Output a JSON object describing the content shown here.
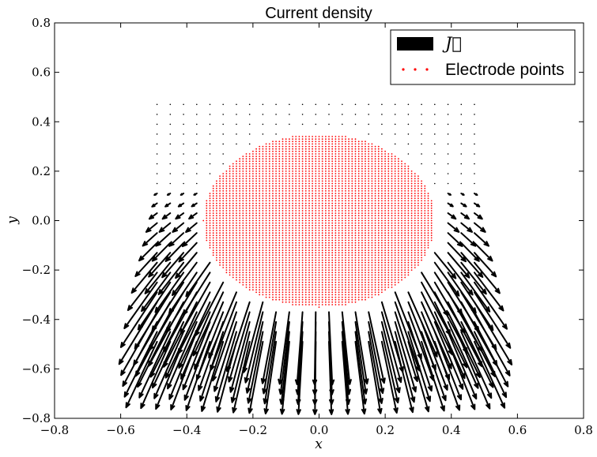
{
  "chart_data": {
    "type": "vector-field",
    "title": "Current density",
    "xlabel": "x",
    "ylabel": "y",
    "xlim": [
      -0.8,
      0.8
    ],
    "ylim": [
      -0.8,
      0.8
    ],
    "x_ticks": [
      -0.8,
      -0.6,
      -0.4,
      -0.2,
      0.0,
      0.2,
      0.4,
      0.6,
      0.8
    ],
    "y_ticks": [
      -0.8,
      -0.6,
      -0.4,
      -0.2,
      0.0,
      0.2,
      0.4,
      0.6,
      0.8
    ],
    "x_tick_labels": [
      "−0.8",
      "−0.6",
      "−0.4",
      "−0.2",
      "0.0",
      "0.2",
      "0.4",
      "0.6",
      "0.8"
    ],
    "y_tick_labels": [
      "−0.8",
      "−0.6",
      "−0.4",
      "−0.2",
      "0.0",
      "0.2",
      "0.4",
      "0.6",
      "0.8"
    ],
    "grid": false,
    "legend_position": "top-right",
    "series": [
      {
        "name": "J",
        "kind": "quiver",
        "color": "#000000",
        "grid_x_range": [
          -0.49,
          0.47
        ],
        "grid_y_range": [
          -0.49,
          0.47
        ],
        "grid_nx": 25,
        "grid_ny": 25,
        "flow_direction": "downward, away from the circular electrode"
      },
      {
        "name": "Electrode points",
        "kind": "scatter",
        "color": "#ff0000",
        "shape": "disk",
        "center": [
          0.0,
          0.0
        ],
        "radius": 0.35
      }
    ],
    "legend": [
      {
        "label": "J⃗",
        "marker": "black-rectangle"
      },
      {
        "label": "Electrode points",
        "marker": "red-dots"
      }
    ]
  }
}
